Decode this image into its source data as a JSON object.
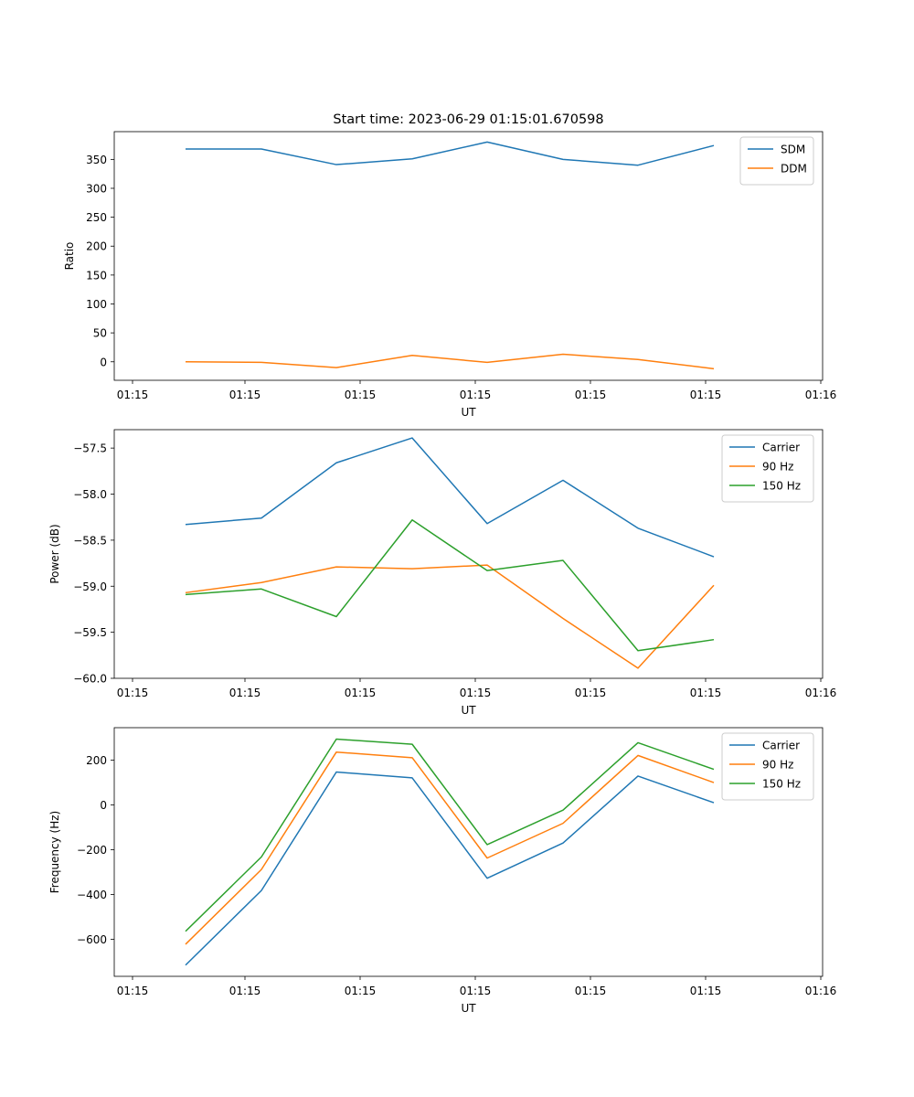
{
  "chart_data": [
    {
      "type": "line",
      "title": "Start time: 2023-06-29 01:15:01.670598",
      "xlabel": "UT",
      "ylabel": "Ratio",
      "x_tick_labels": [
        "01:15",
        "01:15",
        "01:15",
        "01:15",
        "01:15",
        "01:15",
        "01:16"
      ],
      "y_ticks": [
        0,
        50,
        100,
        150,
        200,
        250,
        300,
        350
      ],
      "ylim": [
        -32,
        398
      ],
      "grid": false,
      "legend_position": "top-right",
      "series": [
        {
          "name": "SDM",
          "color": "#1f77b4",
          "values": [
            368,
            368,
            341,
            351,
            380,
            350,
            340,
            374
          ]
        },
        {
          "name": "DDM",
          "color": "#ff7f0e",
          "values": [
            0,
            -1,
            -10,
            11,
            -1,
            13,
            4,
            -12
          ]
        }
      ]
    },
    {
      "type": "line",
      "title": "",
      "xlabel": "UT",
      "ylabel": "Power (dB)",
      "x_tick_labels": [
        "01:15",
        "01:15",
        "01:15",
        "01:15",
        "01:15",
        "01:15",
        "01:16"
      ],
      "y_ticks": [
        -60.0,
        -59.5,
        -59.0,
        -58.5,
        -58.0,
        -57.5
      ],
      "y_tick_labels": [
        "−60.0",
        "−59.5",
        "−59.0",
        "−58.5",
        "−58.0",
        "−57.5"
      ],
      "ylim": [
        -60.0,
        -57.3
      ],
      "grid": false,
      "legend_position": "top-right",
      "series": [
        {
          "name": "Carrier",
          "color": "#1f77b4",
          "values": [
            -58.33,
            -58.26,
            -57.66,
            -57.39,
            -58.32,
            -57.85,
            -58.37,
            -58.68
          ]
        },
        {
          "name": "90 Hz",
          "color": "#ff7f0e",
          "values": [
            -59.07,
            -58.96,
            -58.79,
            -58.81,
            -58.77,
            -59.35,
            -59.89,
            -58.99
          ]
        },
        {
          "name": "150 Hz",
          "color": "#2ca02c",
          "values": [
            -59.09,
            -59.03,
            -59.33,
            -58.28,
            -58.83,
            -58.72,
            -59.7,
            -59.58
          ]
        }
      ]
    },
    {
      "type": "line",
      "title": "",
      "xlabel": "UT",
      "ylabel": "Frequency (Hz)",
      "x_tick_labels": [
        "01:15",
        "01:15",
        "01:15",
        "01:15",
        "01:15",
        "01:15",
        "01:16"
      ],
      "y_ticks": [
        -600,
        -400,
        -200,
        0,
        200
      ],
      "y_tick_labels": [
        "−600",
        "−400",
        "−200",
        "0",
        "200"
      ],
      "ylim": [
        -765,
        345
      ],
      "grid": false,
      "legend_position": "top-right",
      "series": [
        {
          "name": "Carrier",
          "color": "#1f77b4",
          "values": [
            -715,
            -382,
            147,
            121,
            -327,
            -170,
            129,
            10
          ]
        },
        {
          "name": "90 Hz",
          "color": "#ff7f0e",
          "values": [
            -622,
            -288,
            236,
            211,
            -237,
            -82,
            221,
            100
          ]
        },
        {
          "name": "150 Hz",
          "color": "#2ca02c",
          "values": [
            -564,
            -232,
            294,
            271,
            -177,
            -23,
            278,
            159
          ]
        }
      ]
    }
  ]
}
